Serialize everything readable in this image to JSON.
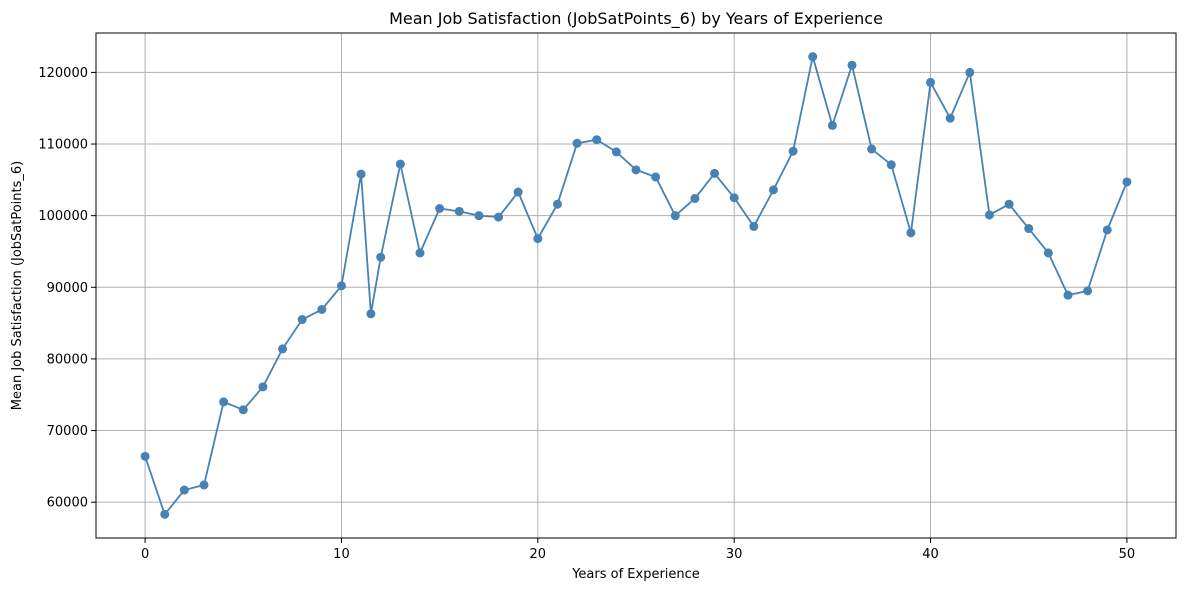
{
  "chart_data": {
    "type": "line",
    "title": "Mean Job Satisfaction (JobSatPoints_6) by Years of Experience",
    "xlabel": "Years of Experience",
    "ylabel": "Mean Job Satisfaction (JobSatPoints_6)",
    "xlim": [
      -2.5,
      52.5
    ],
    "ylim": [
      55000,
      125500
    ],
    "xticks": [
      0,
      10,
      20,
      30,
      40,
      50
    ],
    "yticks": [
      60000,
      70000,
      80000,
      90000,
      100000,
      110000,
      120000
    ],
    "grid": true,
    "color": "#4682b4",
    "marker": "circle",
    "x": [
      0,
      1,
      2,
      3,
      4,
      5,
      6,
      7,
      8,
      9,
      10,
      11,
      11.5,
      12,
      13,
      14,
      15,
      16,
      17,
      18,
      19,
      20,
      21,
      22,
      23,
      24,
      25,
      26,
      27,
      28,
      29,
      30,
      31,
      32,
      33,
      34,
      35,
      36,
      37,
      38,
      39,
      40,
      41,
      42,
      43,
      44,
      45,
      46,
      47,
      48,
      49,
      50
    ],
    "y": [
      66400,
      58300,
      61700,
      62400,
      74000,
      72900,
      76100,
      81400,
      85500,
      86900,
      90200,
      105800,
      86300,
      94200,
      107200,
      94800,
      101000,
      100600,
      100000,
      99800,
      103300,
      96800,
      101600,
      110100,
      110600,
      108900,
      106400,
      105400,
      100000,
      102400,
      105900,
      102500,
      98500,
      103600,
      109000,
      122200,
      112600,
      121000,
      109300,
      107100,
      97600,
      118600,
      113600,
      120000,
      100100,
      101600,
      98200,
      94800,
      88900,
      89500,
      98000,
      104700
    ]
  }
}
